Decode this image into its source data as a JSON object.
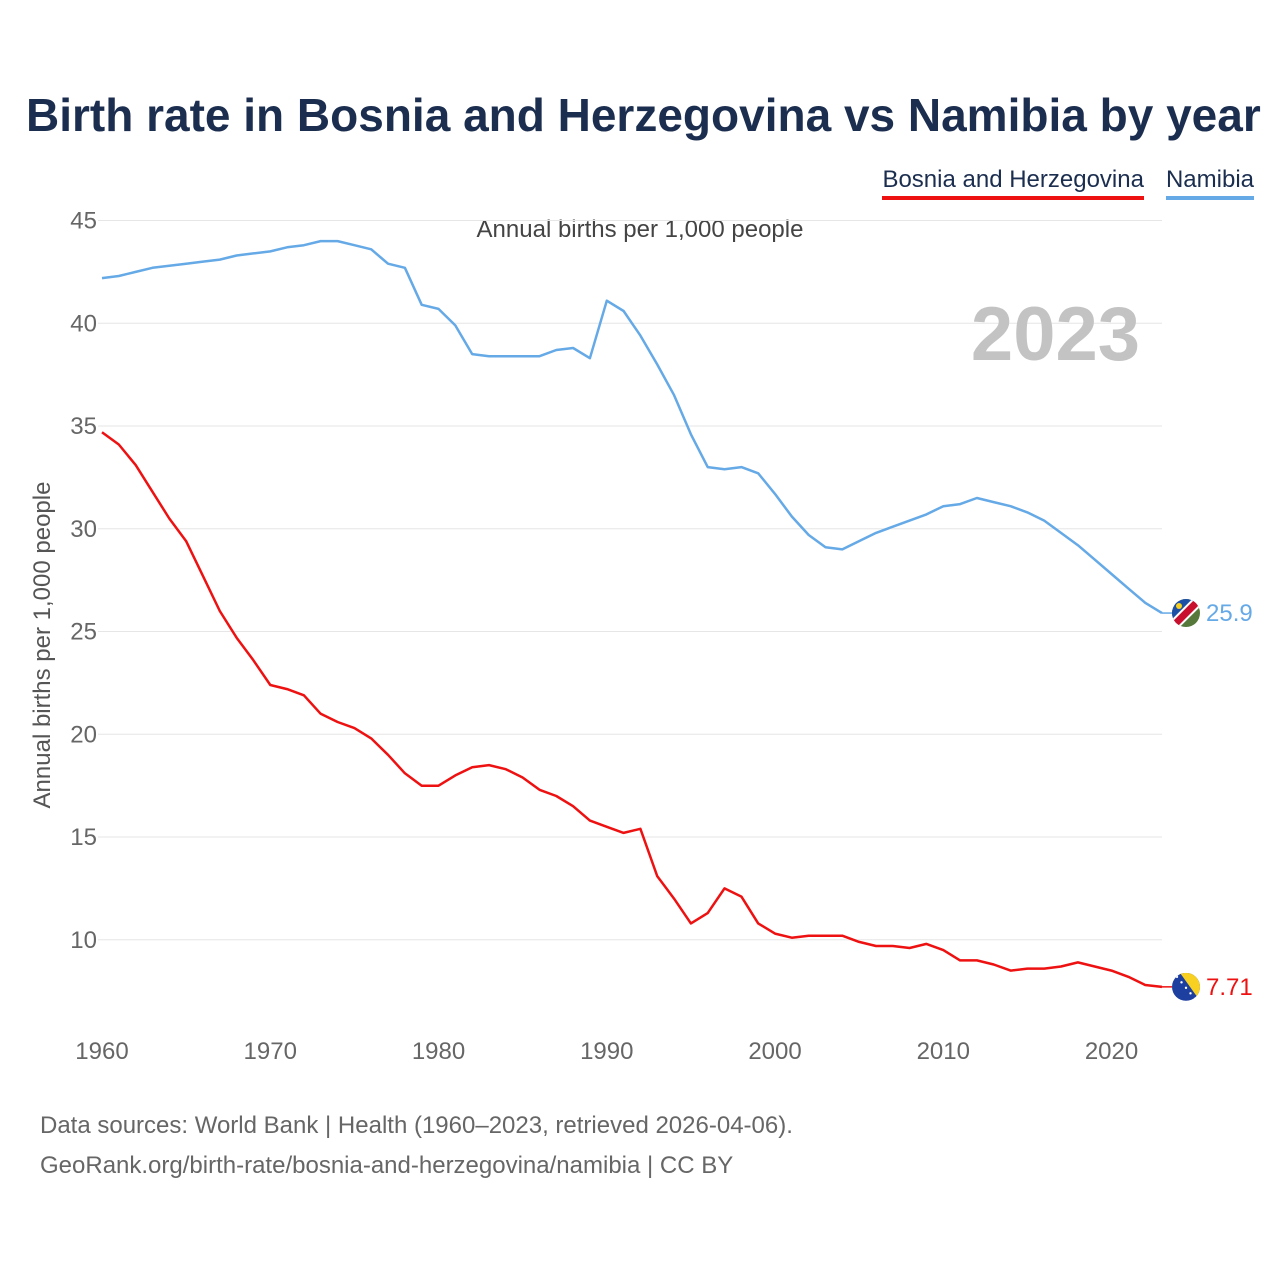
{
  "title": "Birth rate in Bosnia and Herzegovina vs Namibia by year",
  "legend": {
    "bosnia": "Bosnia and Herzegovina",
    "namibia": "Namibia"
  },
  "subtitle": "Annual births per 1,000 people",
  "year_badge": "2023",
  "footer": {
    "line1": "Data sources: World Bank | Health (1960–2023, retrieved 2026-04-06).",
    "line2": "GeoRank.org/birth-rate/bosnia-and-herzegovina/namibia | CC BY"
  },
  "colors": {
    "bosnia": "#ee1111",
    "namibia": "#65a9e6",
    "grid": "#e6e6e6"
  },
  "chart_data": {
    "type": "line",
    "title": "Birth rate in Bosnia and Herzegovina vs Namibia by year",
    "xlabel": "",
    "ylabel": "Annual births per 1,000 people",
    "xlim": [
      1960,
      2023
    ],
    "ylim": [
      6,
      46
    ],
    "x_ticks": [
      1960,
      1970,
      1980,
      1990,
      2000,
      2010,
      2020
    ],
    "y_ticks": [
      10,
      15,
      20,
      25,
      30,
      35,
      40,
      45
    ],
    "grid": true,
    "legend_position": "top-right",
    "x": [
      1960,
      1961,
      1962,
      1963,
      1964,
      1965,
      1966,
      1967,
      1968,
      1969,
      1970,
      1971,
      1972,
      1973,
      1974,
      1975,
      1976,
      1977,
      1978,
      1979,
      1980,
      1981,
      1982,
      1983,
      1984,
      1985,
      1986,
      1987,
      1988,
      1989,
      1990,
      1991,
      1992,
      1993,
      1994,
      1995,
      1996,
      1997,
      1998,
      1999,
      2000,
      2001,
      2002,
      2003,
      2004,
      2005,
      2006,
      2007,
      2008,
      2009,
      2010,
      2011,
      2012,
      2013,
      2014,
      2015,
      2016,
      2017,
      2018,
      2019,
      2020,
      2021,
      2022,
      2023
    ],
    "series": [
      {
        "name": "Bosnia and Herzegovina",
        "end_label": "7.71",
        "values": [
          34.7,
          34.1,
          33.1,
          31.8,
          30.5,
          29.4,
          27.7,
          26.0,
          24.7,
          23.6,
          22.4,
          22.2,
          21.9,
          21.0,
          20.6,
          20.3,
          19.8,
          19.0,
          18.1,
          17.5,
          17.5,
          18.0,
          18.4,
          18.5,
          18.3,
          17.9,
          17.3,
          17.0,
          16.5,
          15.8,
          15.5,
          15.2,
          15.4,
          13.1,
          12.0,
          10.8,
          11.3,
          12.5,
          12.1,
          10.8,
          10.3,
          10.1,
          10.2,
          10.2,
          10.2,
          9.9,
          9.7,
          9.7,
          9.6,
          9.8,
          9.5,
          9.0,
          9.0,
          8.8,
          8.5,
          8.6,
          8.6,
          8.7,
          8.9,
          8.7,
          8.5,
          8.2,
          7.8,
          7.71
        ]
      },
      {
        "name": "Namibia",
        "end_label": "25.9",
        "values": [
          42.2,
          42.3,
          42.5,
          42.7,
          42.8,
          42.9,
          43.0,
          43.1,
          43.3,
          43.4,
          43.5,
          43.7,
          43.8,
          44.0,
          44.0,
          43.8,
          43.6,
          42.9,
          42.7,
          40.9,
          40.7,
          39.9,
          38.5,
          38.4,
          38.4,
          38.4,
          38.4,
          38.7,
          38.8,
          38.3,
          41.1,
          40.6,
          39.4,
          38.0,
          36.5,
          34.6,
          33.0,
          32.9,
          33.0,
          32.7,
          31.7,
          30.6,
          29.7,
          29.1,
          29.0,
          29.4,
          29.8,
          30.1,
          30.4,
          30.7,
          31.1,
          31.2,
          31.5,
          31.3,
          31.1,
          30.8,
          30.4,
          29.8,
          29.2,
          28.5,
          27.8,
          27.1,
          26.4,
          25.9
        ]
      }
    ]
  }
}
